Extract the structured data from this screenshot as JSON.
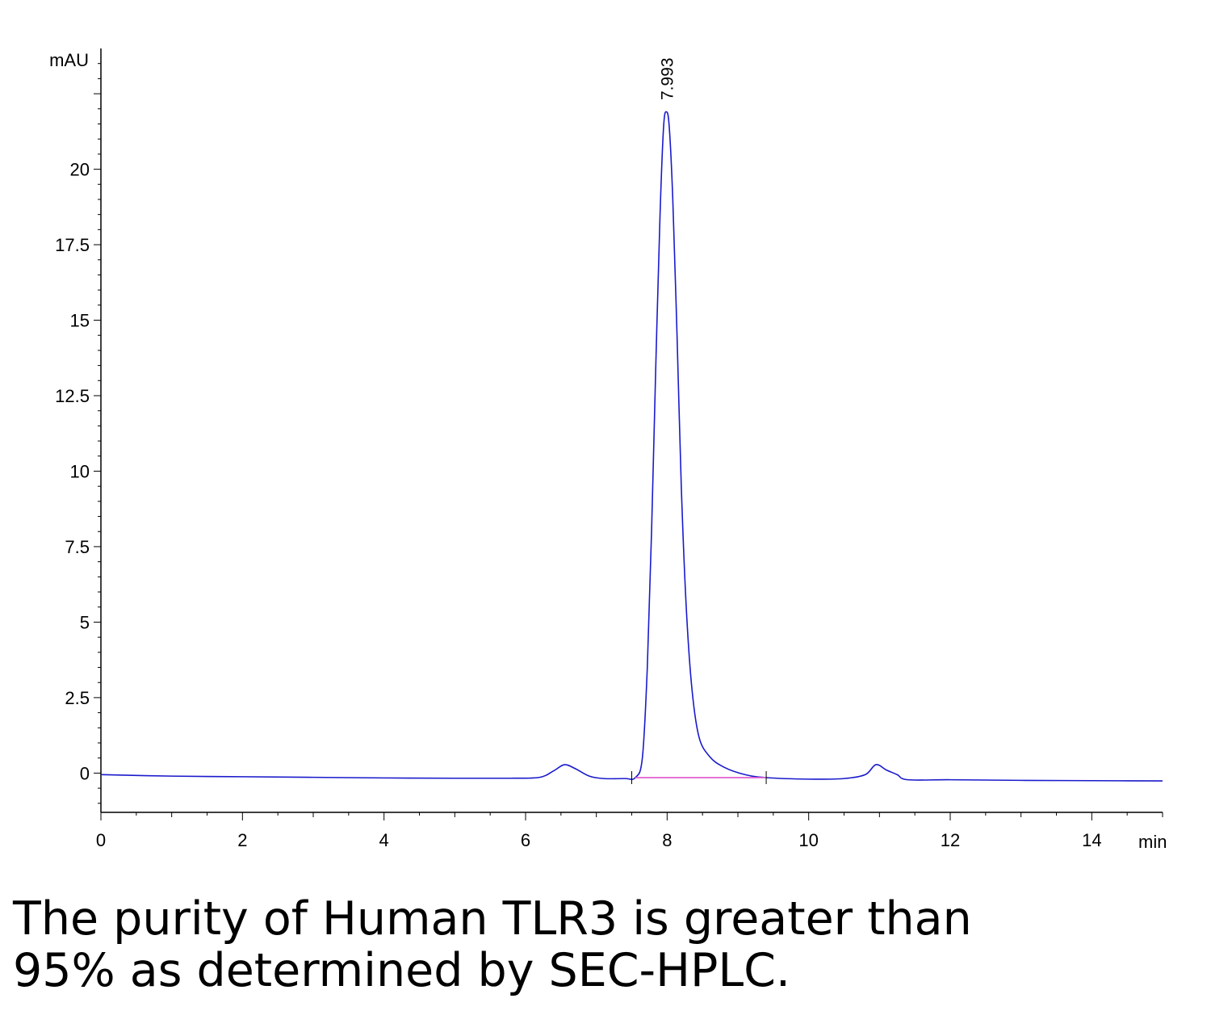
{
  "chart_data": {
    "type": "line",
    "title": "",
    "xlabel": "min",
    "ylabel": "mAU",
    "xlim": [
      0,
      15
    ],
    "ylim": [
      -1.3,
      24.0
    ],
    "x_ticks": [
      0,
      2,
      4,
      6,
      8,
      10,
      12,
      14
    ],
    "y_ticks": [
      0,
      2.5,
      5,
      7.5,
      10,
      12.5,
      15,
      17.5,
      20
    ],
    "y_tick_labels": [
      "0",
      "2.5",
      "5",
      "7.5",
      "10",
      "12.5",
      "15",
      "17.5",
      "20"
    ],
    "grid": false,
    "series": [
      {
        "color": "#1a1acc",
        "x": [
          0,
          1,
          2,
          3,
          4,
          5,
          5.8,
          6.2,
          6.4,
          6.55,
          6.7,
          6.9,
          7.1,
          7.4,
          7.55,
          7.65,
          7.72,
          7.78,
          7.84,
          7.9,
          7.95,
          7.99,
          8.03,
          8.08,
          8.14,
          8.2,
          8.27,
          8.35,
          8.45,
          8.6,
          8.8,
          9.1,
          9.4,
          10.0,
          10.5,
          10.8,
          10.95,
          11.1,
          11.25,
          11.4,
          12.0,
          13.0,
          14.0,
          15.0
        ],
        "y": [
          -0.05,
          -0.1,
          -0.12,
          -0.14,
          -0.16,
          -0.17,
          -0.17,
          -0.14,
          0.08,
          0.28,
          0.15,
          -0.1,
          -0.18,
          -0.18,
          -0.15,
          0.5,
          3.5,
          8.0,
          13.5,
          18.5,
          21.4,
          21.9,
          21.4,
          19.0,
          14.5,
          9.5,
          5.5,
          2.8,
          1.2,
          0.55,
          0.2,
          -0.05,
          -0.15,
          -0.2,
          -0.18,
          -0.05,
          0.28,
          0.1,
          -0.05,
          -0.22,
          -0.22,
          -0.24,
          -0.25,
          -0.26
        ]
      },
      {
        "color": "#e060d0",
        "x": [
          7.55,
          9.4
        ],
        "y": [
          -0.15,
          -0.15
        ]
      }
    ],
    "annotations": [
      {
        "text": "7.993",
        "x": 7.993,
        "y": 22.0
      }
    ],
    "integration_marks": [
      7.5,
      9.4
    ]
  },
  "caption": {
    "line1": "The purity of Human TLR3 is greater than",
    "line2": "95% as determined by SEC-HPLC."
  }
}
